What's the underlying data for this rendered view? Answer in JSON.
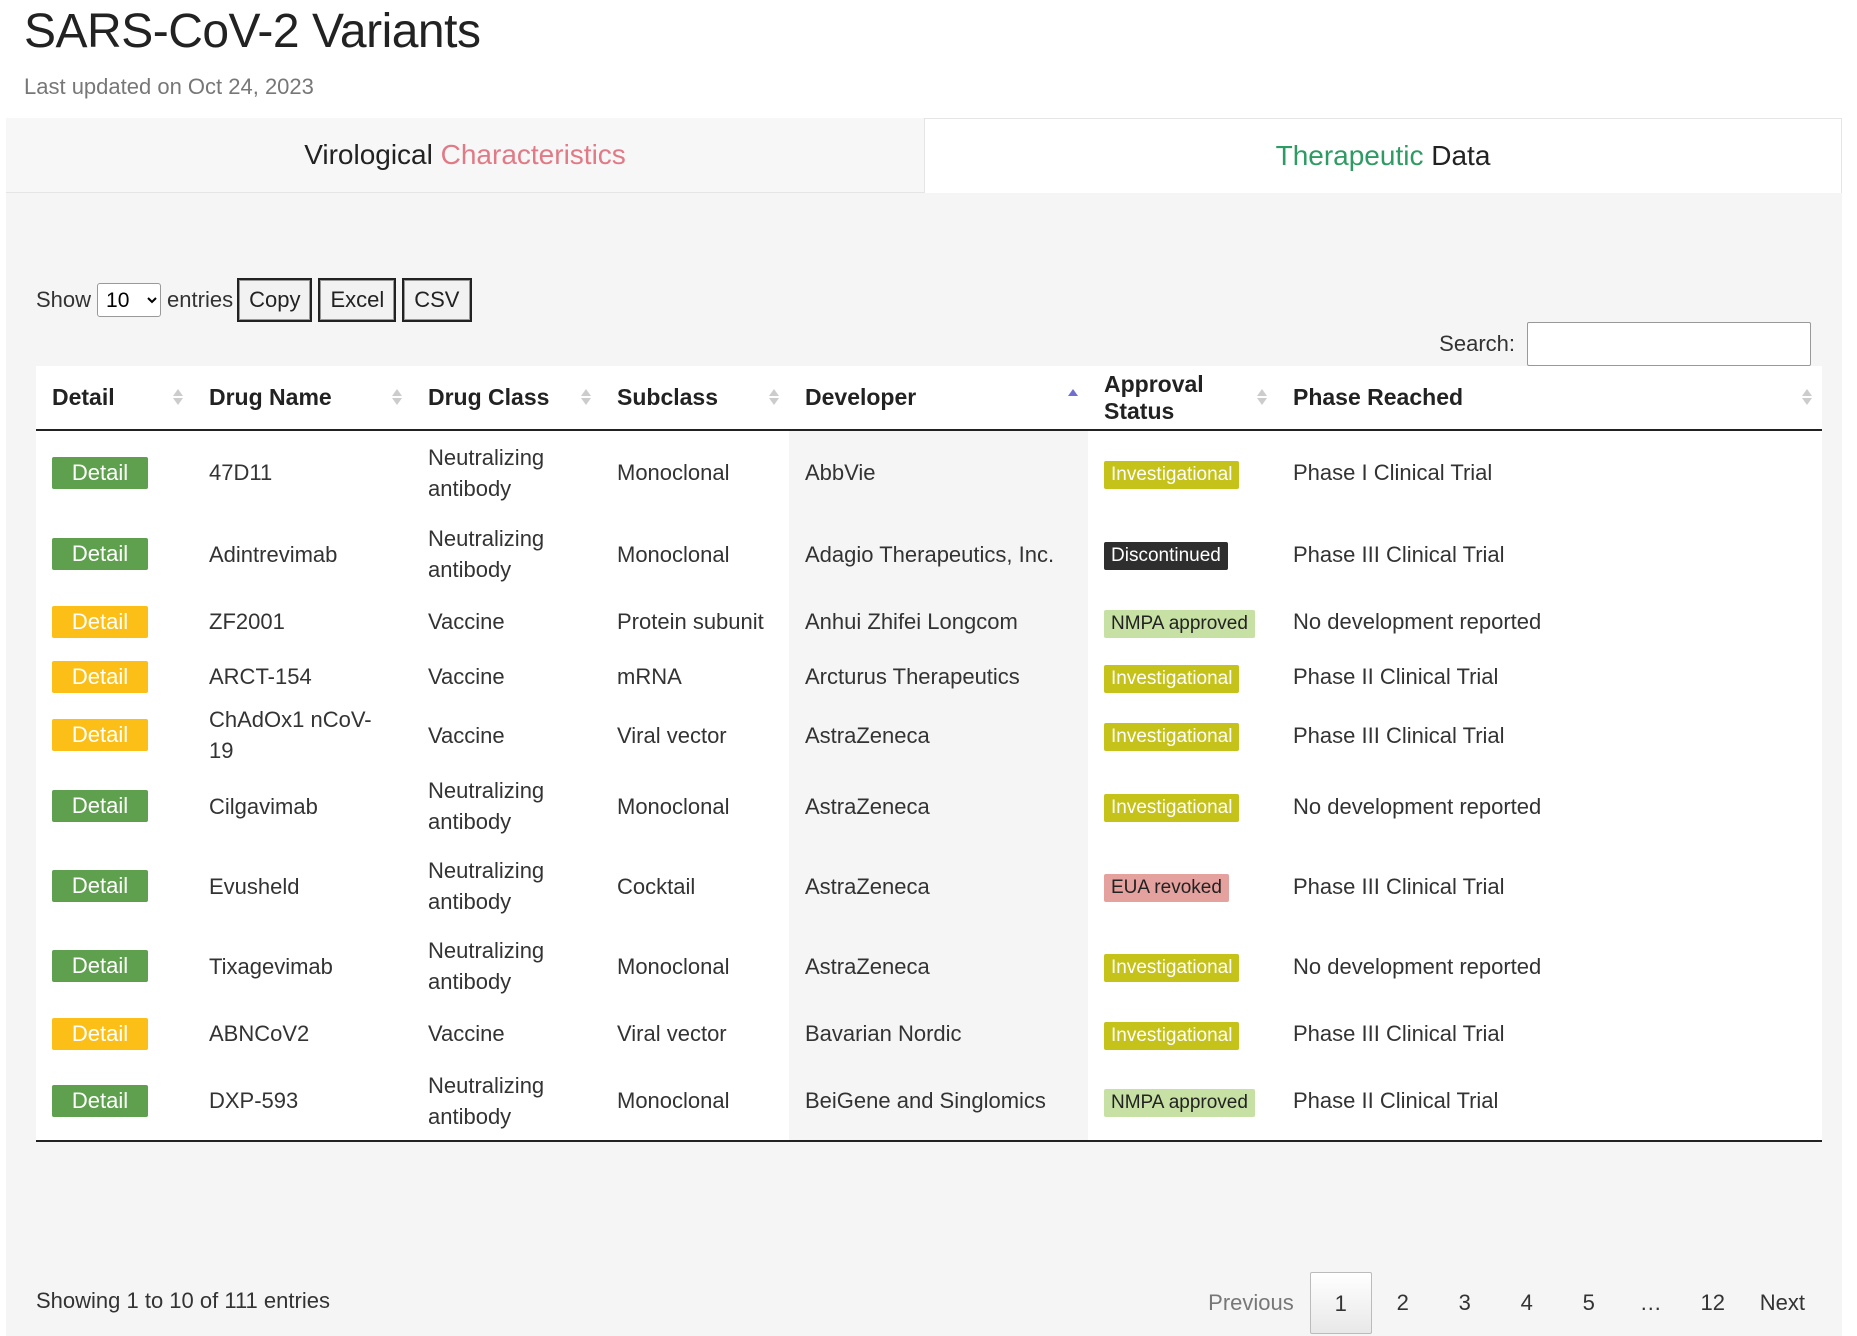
{
  "header": {
    "title": "SARS-CoV-2 Variants",
    "updated": "Last updated on Oct 24, 2023"
  },
  "tabs": [
    {
      "part1": "Virological",
      "part2": "Characteristics"
    },
    {
      "part1": "Therapeutic",
      "part2": "Data"
    }
  ],
  "controls": {
    "show_label": "Show",
    "page_size": "10",
    "entries_label": "entries",
    "copy_label": "Copy",
    "excel_label": "Excel",
    "csv_label": "CSV",
    "search_label": "Search:",
    "search_value": ""
  },
  "table": {
    "columns": [
      "Detail",
      "Drug Name",
      "Drug Class",
      "Subclass",
      "Developer",
      "Approval Status",
      "Phase Reached"
    ],
    "sorted_column": "Developer",
    "detail_label": "Detail",
    "rows": [
      {
        "detail_color": "#5fa04e",
        "drug": "47D11",
        "class_l1": "Neutralizing",
        "class_l2": "antibody",
        "subclass": "Monoclonal",
        "developer": "AbbVie",
        "status": "Investigational",
        "status_bg": "#c5c21a",
        "status_fg": "#ffffff",
        "phase": "Phase I Clinical Trial"
      },
      {
        "detail_color": "#5fa04e",
        "drug": "Adintrevimab",
        "class_l1": "Neutralizing",
        "class_l2": "antibody",
        "subclass": "Monoclonal",
        "developer": "Adagio Therapeutics, Inc.",
        "status": "Discontinued",
        "status_bg": "#2e2e2e",
        "status_fg": "#ffffff",
        "phase": "Phase III Clinical Trial"
      },
      {
        "detail_color": "#fbbf18",
        "drug": "ZF2001",
        "class_l1": "Vaccine",
        "class_l2": "",
        "subclass": "Protein subunit",
        "developer": "Anhui Zhifei Longcom",
        "status": "NMPA approved",
        "status_bg": "#c7e0a4",
        "status_fg": "#222222",
        "phase": "No development reported"
      },
      {
        "detail_color": "#fbbf18",
        "drug": "ARCT-154",
        "class_l1": "Vaccine",
        "class_l2": "",
        "subclass": "mRNA",
        "developer": "Arcturus Therapeutics",
        "status": "Investigational",
        "status_bg": "#c5c21a",
        "status_fg": "#ffffff",
        "phase": "Phase II Clinical Trial"
      },
      {
        "detail_color": "#fbbf18",
        "drug": "ChAdOx1 nCoV-19",
        "class_l1": "Vaccine",
        "class_l2": "",
        "subclass": "Viral vector",
        "developer": "AstraZeneca",
        "status": "Investigational",
        "status_bg": "#c5c21a",
        "status_fg": "#ffffff",
        "phase": "Phase III Clinical Trial"
      },
      {
        "detail_color": "#5fa04e",
        "drug": "Cilgavimab",
        "class_l1": "Neutralizing",
        "class_l2": "antibody",
        "subclass": "Monoclonal",
        "developer": "AstraZeneca",
        "status": "Investigational",
        "status_bg": "#c5c21a",
        "status_fg": "#ffffff",
        "phase": "No development reported"
      },
      {
        "detail_color": "#5fa04e",
        "drug": "Evusheld",
        "class_l1": "Neutralizing",
        "class_l2": "antibody",
        "subclass": "Cocktail",
        "developer": "AstraZeneca",
        "status": "EUA revoked",
        "status_bg": "#e5a19e",
        "status_fg": "#222222",
        "phase": "Phase III Clinical Trial"
      },
      {
        "detail_color": "#5fa04e",
        "drug": "Tixagevimab",
        "class_l1": "Neutralizing",
        "class_l2": "antibody",
        "subclass": "Monoclonal",
        "developer": "AstraZeneca",
        "status": "Investigational",
        "status_bg": "#c5c21a",
        "status_fg": "#ffffff",
        "phase": "No development reported"
      },
      {
        "detail_color": "#fbbf18",
        "drug": "ABNCoV2",
        "class_l1": "Vaccine",
        "class_l2": "",
        "subclass": "Viral vector",
        "developer": "Bavarian Nordic",
        "status": "Investigational",
        "status_bg": "#c5c21a",
        "status_fg": "#ffffff",
        "phase": "Phase III Clinical Trial"
      },
      {
        "detail_color": "#5fa04e",
        "drug": "DXP-593",
        "class_l1": "Neutralizing",
        "class_l2": "antibody",
        "subclass": "Monoclonal",
        "developer": "BeiGene and Singlomics",
        "status": "NMPA approved",
        "status_bg": "#c7e0a4",
        "status_fg": "#222222",
        "phase": "Phase II Clinical Trial"
      }
    ]
  },
  "footer": {
    "info": "Showing 1 to 10 of 111 entries",
    "pages": [
      "Previous",
      "1",
      "2",
      "3",
      "4",
      "5",
      "…",
      "12",
      "Next"
    ],
    "current_page": "1"
  },
  "colors": {
    "tab_accent_red": "#e07a86",
    "tab_accent_green": "#2e9b64",
    "sort_active": "#6f6fcf"
  }
}
